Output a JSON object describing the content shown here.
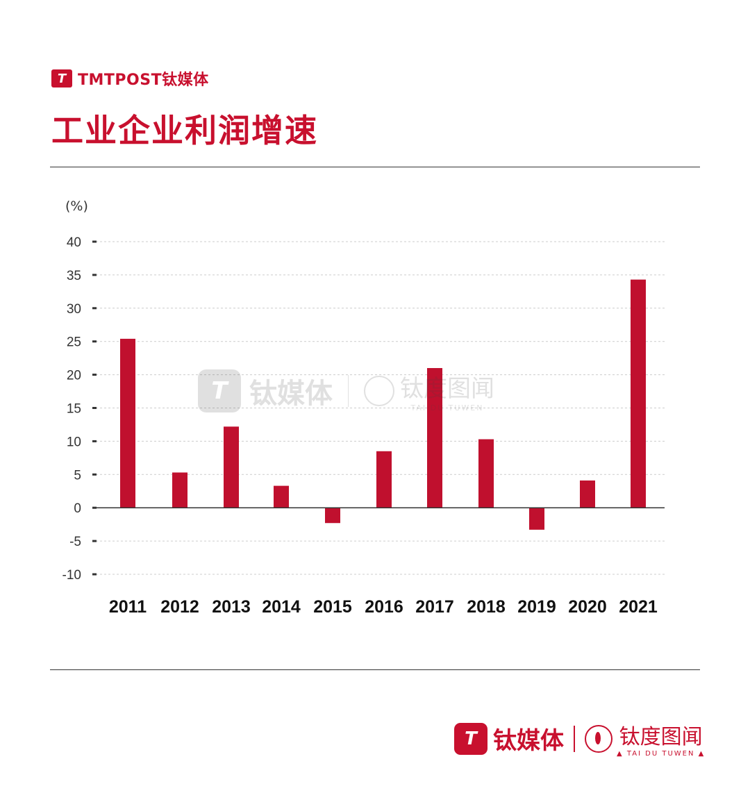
{
  "header": {
    "brand_mark": "T",
    "brand_text": "TMTPOST钛媒体",
    "title": "工业企业利润增速"
  },
  "watermark": {
    "mark": "T",
    "text": "钛媒体",
    "cn": "钛度图闻",
    "en": "TAI DU TUWEN"
  },
  "footer": {
    "mark": "T",
    "text": "钛媒体",
    "cn": "钛度图闻",
    "en": "▲ TAI DU TUWEN ▲"
  },
  "colors": {
    "accent": "#c8102e",
    "bar": "#c0102e",
    "grid": "#cccccc",
    "axis": "#333333"
  },
  "chart_data": {
    "type": "bar",
    "unit_label": "(%)",
    "categories": [
      "2011",
      "2012",
      "2013",
      "2014",
      "2015",
      "2016",
      "2017",
      "2018",
      "2019",
      "2020",
      "2021"
    ],
    "values": [
      25.4,
      5.3,
      12.2,
      3.3,
      -2.3,
      8.5,
      21.0,
      10.3,
      -3.3,
      4.1,
      34.3
    ],
    "ylim": [
      -10,
      40
    ],
    "yticks": [
      "40",
      "35",
      "30",
      "25",
      "20",
      "15",
      "10",
      "5",
      "0",
      "-5",
      "-10"
    ],
    "grid": true
  }
}
